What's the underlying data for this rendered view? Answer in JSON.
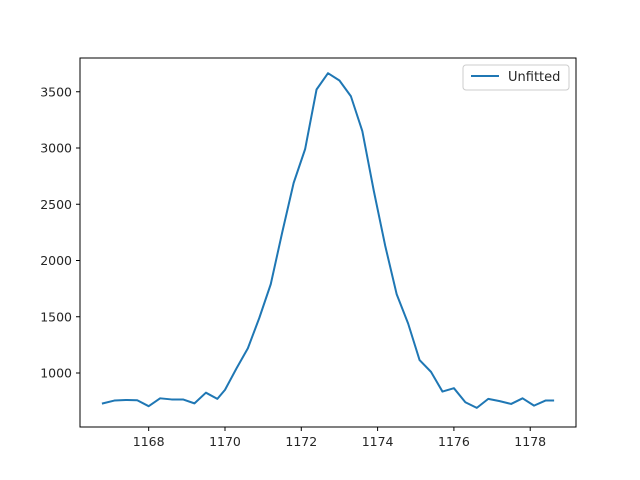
{
  "chart_data": {
    "type": "line",
    "title": "",
    "xlabel": "",
    "ylabel": "",
    "xlim": [
      1166.2,
      1179.2
    ],
    "ylim": [
      520,
      3800
    ],
    "xticks": [
      1168,
      1170,
      1172,
      1174,
      1176,
      1178
    ],
    "yticks": [
      1000,
      1500,
      2000,
      2500,
      3000,
      3500
    ],
    "grid": false,
    "legend_position": "top-right",
    "series": [
      {
        "name": "Unfitted",
        "color": "#1f77b4",
        "x": [
          1166.8,
          1167.1,
          1167.4,
          1167.7,
          1168.0,
          1168.3,
          1168.6,
          1168.9,
          1169.2,
          1169.5,
          1169.8,
          1170.0,
          1170.3,
          1170.6,
          1170.9,
          1171.2,
          1171.5,
          1171.8,
          1172.1,
          1172.4,
          1172.7,
          1173.0,
          1173.3,
          1173.6,
          1173.9,
          1174.2,
          1174.5,
          1174.8,
          1175.1,
          1175.4,
          1175.7,
          1176.0,
          1176.3,
          1176.6,
          1176.9,
          1177.2,
          1177.5,
          1177.8,
          1178.1,
          1178.4,
          1178.6
        ],
        "y": [
          730,
          755,
          760,
          758,
          705,
          775,
          765,
          765,
          730,
          825,
          770,
          850,
          1040,
          1220,
          1490,
          1790,
          2250,
          2690,
          2990,
          3520,
          3665,
          3600,
          3460,
          3150,
          2620,
          2130,
          1700,
          1440,
          1115,
          1010,
          835,
          865,
          740,
          690,
          770,
          750,
          725,
          775,
          710,
          755,
          755
        ]
      }
    ]
  }
}
